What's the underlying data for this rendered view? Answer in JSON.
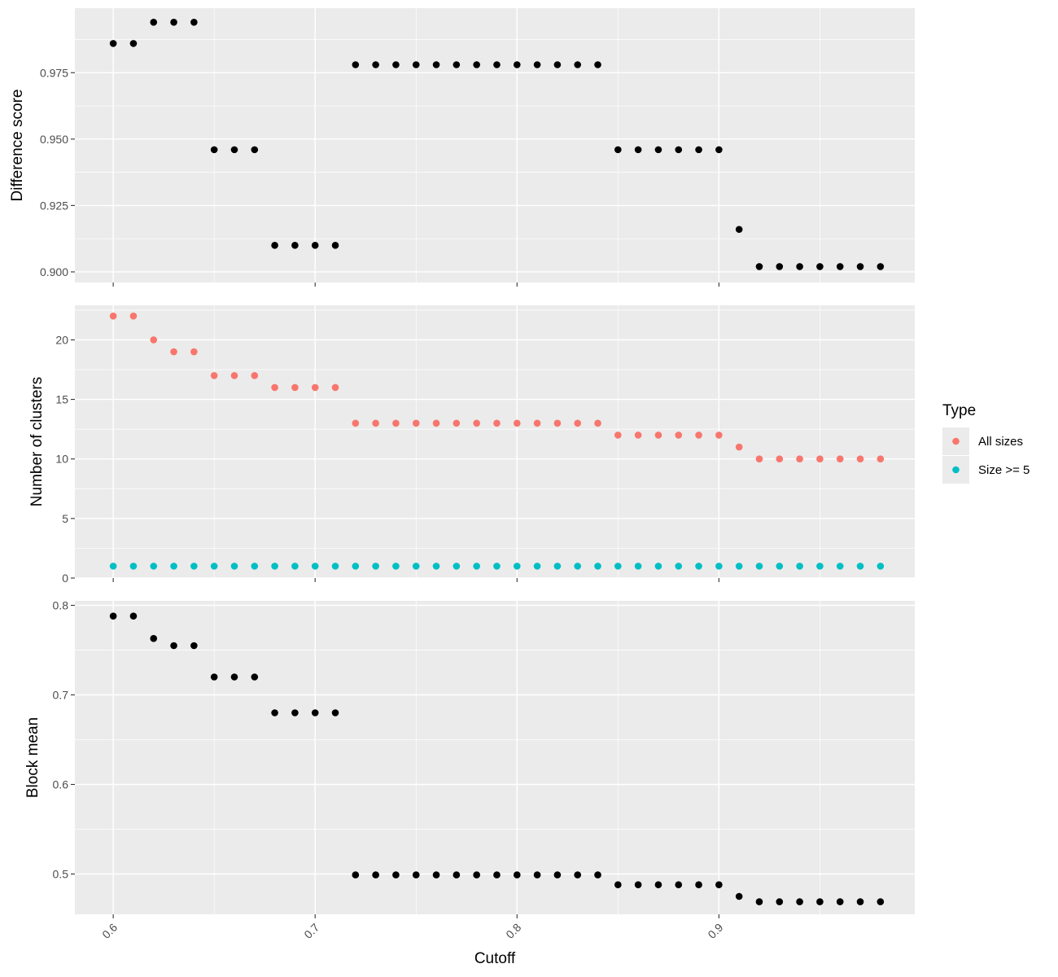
{
  "x_axis": {
    "label": "Cutoff",
    "ticks": [
      0.6,
      0.7,
      0.8,
      0.9
    ],
    "tick_labels": [
      "0.6",
      "0.7",
      "0.8",
      "0.9"
    ]
  },
  "legend": {
    "title": "Type",
    "entries": [
      "All sizes",
      "Size >= 5"
    ],
    "colors": [
      "#f8766d",
      "#00bfc4"
    ],
    "placement": "right"
  },
  "style": {
    "panel_bg": "#ebebeb",
    "grid_color": "#ffffff",
    "point_color": "#000000"
  },
  "chart_data": [
    {
      "type": "scatter",
      "ylabel": "Difference score",
      "xlim": [
        0.581,
        0.997
      ],
      "ylim": [
        0.896,
        0.9993
      ],
      "y_ticks": [
        0.9,
        0.925,
        0.95,
        0.975
      ],
      "y_tick_labels": [
        "0.900",
        "0.925",
        "0.950",
        "0.975"
      ],
      "grid": true,
      "series": [
        {
          "x": [
            0.6,
            0.61,
            0.62,
            0.63,
            0.64,
            0.65,
            0.66,
            0.67,
            0.68,
            0.69,
            0.7,
            0.71,
            0.72,
            0.73,
            0.74,
            0.75,
            0.76,
            0.77,
            0.78,
            0.79,
            0.8,
            0.81,
            0.82,
            0.83,
            0.84,
            0.85,
            0.86,
            0.87,
            0.88,
            0.89,
            0.9,
            0.91,
            0.92,
            0.93,
            0.94,
            0.95,
            0.96,
            0.97,
            0.98
          ],
          "y": [
            0.986,
            0.986,
            0.994,
            0.994,
            0.994,
            0.946,
            0.946,
            0.946,
            0.91,
            0.91,
            0.91,
            0.91,
            0.978,
            0.978,
            0.978,
            0.978,
            0.978,
            0.978,
            0.978,
            0.978,
            0.978,
            0.978,
            0.978,
            0.978,
            0.978,
            0.946,
            0.946,
            0.946,
            0.946,
            0.946,
            0.946,
            0.916,
            0.902,
            0.902,
            0.902,
            0.902,
            0.902,
            0.902,
            0.902
          ]
        }
      ]
    },
    {
      "type": "scatter",
      "ylabel": "Number of clusters",
      "xlim": [
        0.581,
        0.997
      ],
      "ylim": [
        0,
        22.9
      ],
      "y_ticks": [
        0,
        5,
        10,
        15,
        20
      ],
      "y_tick_labels": [
        "0",
        "5",
        "10",
        "15",
        "20"
      ],
      "grid": true,
      "series": [
        {
          "name": "All sizes",
          "x": [
            0.6,
            0.61,
            0.62,
            0.63,
            0.64,
            0.65,
            0.66,
            0.67,
            0.68,
            0.69,
            0.7,
            0.71,
            0.72,
            0.73,
            0.74,
            0.75,
            0.76,
            0.77,
            0.78,
            0.79,
            0.8,
            0.81,
            0.82,
            0.83,
            0.84,
            0.85,
            0.86,
            0.87,
            0.88,
            0.89,
            0.9,
            0.91,
            0.92,
            0.93,
            0.94,
            0.95,
            0.96,
            0.97,
            0.98
          ],
          "y": [
            22,
            22,
            20,
            19,
            19,
            17,
            17,
            17,
            16,
            16,
            16,
            16,
            13,
            13,
            13,
            13,
            13,
            13,
            13,
            13,
            13,
            13,
            13,
            13,
            13,
            12,
            12,
            12,
            12,
            12,
            12,
            11,
            10,
            10,
            10,
            10,
            10,
            10,
            10
          ]
        },
        {
          "name": "Size >= 5",
          "x": [
            0.6,
            0.61,
            0.62,
            0.63,
            0.64,
            0.65,
            0.66,
            0.67,
            0.68,
            0.69,
            0.7,
            0.71,
            0.72,
            0.73,
            0.74,
            0.75,
            0.76,
            0.77,
            0.78,
            0.79,
            0.8,
            0.81,
            0.82,
            0.83,
            0.84,
            0.85,
            0.86,
            0.87,
            0.88,
            0.89,
            0.9,
            0.91,
            0.92,
            0.93,
            0.94,
            0.95,
            0.96,
            0.97,
            0.98
          ],
          "y": [
            1,
            1,
            1,
            1,
            1,
            1,
            1,
            1,
            1,
            1,
            1,
            1,
            1,
            1,
            1,
            1,
            1,
            1,
            1,
            1,
            1,
            1,
            1,
            1,
            1,
            1,
            1,
            1,
            1,
            1,
            1,
            1,
            1,
            1,
            1,
            1,
            1,
            1,
            1
          ]
        }
      ]
    },
    {
      "type": "scatter",
      "ylabel": "Block mean",
      "xlim": [
        0.581,
        0.997
      ],
      "ylim": [
        0.455,
        0.805
      ],
      "y_ticks": [
        0.5,
        0.6,
        0.7,
        0.8
      ],
      "y_tick_labels": [
        "0.5",
        "0.6",
        "0.7",
        "0.8"
      ],
      "grid": true,
      "series": [
        {
          "x": [
            0.6,
            0.61,
            0.62,
            0.63,
            0.64,
            0.65,
            0.66,
            0.67,
            0.68,
            0.69,
            0.7,
            0.71,
            0.72,
            0.73,
            0.74,
            0.75,
            0.76,
            0.77,
            0.78,
            0.79,
            0.8,
            0.81,
            0.82,
            0.83,
            0.84,
            0.85,
            0.86,
            0.87,
            0.88,
            0.89,
            0.9,
            0.91,
            0.92,
            0.93,
            0.94,
            0.95,
            0.96,
            0.97,
            0.98
          ],
          "y": [
            0.788,
            0.788,
            0.763,
            0.755,
            0.755,
            0.72,
            0.72,
            0.72,
            0.68,
            0.68,
            0.68,
            0.68,
            0.499,
            0.499,
            0.499,
            0.499,
            0.499,
            0.499,
            0.499,
            0.499,
            0.499,
            0.499,
            0.499,
            0.499,
            0.499,
            0.488,
            0.488,
            0.488,
            0.488,
            0.488,
            0.488,
            0.475,
            0.469,
            0.469,
            0.469,
            0.469,
            0.469,
            0.469,
            0.469
          ]
        }
      ]
    }
  ]
}
